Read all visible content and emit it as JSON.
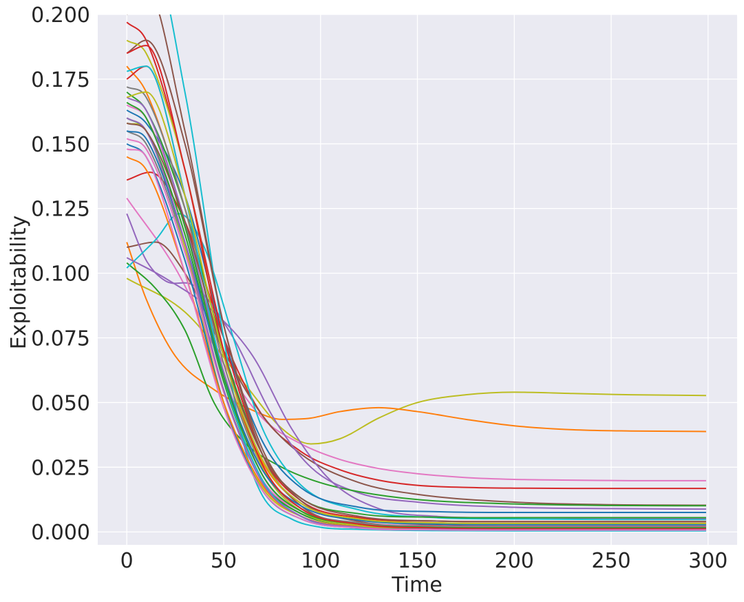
{
  "chart_data": {
    "type": "line",
    "title": "",
    "xlabel": "Time",
    "ylabel": "Exploitability",
    "xlim": [
      -15,
      315
    ],
    "ylim": [
      -0.005,
      0.2
    ],
    "xticks": [
      0,
      50,
      100,
      150,
      200,
      250,
      300
    ],
    "xtick_labels": [
      "0",
      "50",
      "100",
      "150",
      "200",
      "250",
      "300"
    ],
    "yticks": [
      0,
      0.025,
      0.05,
      0.075,
      0.1,
      0.125,
      0.15,
      0.175,
      0.2
    ],
    "ytick_labels": [
      "0.000",
      "0.025",
      "0.050",
      "0.075",
      "0.100",
      "0.125",
      "0.150",
      "0.175",
      "0.200"
    ],
    "grid": true,
    "legend": "none",
    "background": "#eaeaf2",
    "palette": [
      "#1f77b4",
      "#ff7f0e",
      "#2ca02c",
      "#d62728",
      "#9467bd",
      "#8c564b",
      "#e377c2",
      "#7f7f7f",
      "#bcbd22",
      "#17becf"
    ],
    "series": [
      {
        "color": "#bcbd22",
        "x": [
          0,
          30,
          60,
          80,
          95,
          110,
          130,
          150,
          175,
          200,
          230,
          260,
          299
        ],
        "y": [
          0.098,
          0.085,
          0.058,
          0.04,
          0.034,
          0.036,
          0.044,
          0.05,
          0.053,
          0.054,
          0.0535,
          0.053,
          0.0527
        ]
      },
      {
        "color": "#ff7f0e",
        "x": [
          0,
          10,
          25,
          45,
          65,
          80,
          95,
          110,
          130,
          150,
          175,
          200,
          230,
          260,
          299
        ],
        "y": [
          0.112,
          0.09,
          0.068,
          0.055,
          0.047,
          0.0435,
          0.044,
          0.0465,
          0.048,
          0.0465,
          0.0435,
          0.041,
          0.0395,
          0.039,
          0.0388
        ]
      },
      {
        "color": "#e377c2",
        "x": [
          0,
          25,
          50,
          70,
          90,
          110,
          130,
          150,
          175,
          200,
          230,
          260,
          299
        ],
        "y": [
          0.129,
          0.102,
          0.065,
          0.044,
          0.034,
          0.028,
          0.0245,
          0.0225,
          0.021,
          0.0203,
          0.02,
          0.0198,
          0.0198
        ]
      },
      {
        "color": "#d62728",
        "x": [
          0,
          12,
          30,
          50,
          70,
          90,
          110,
          130,
          150,
          175,
          200,
          230,
          260,
          299
        ],
        "y": [
          0.136,
          0.139,
          0.12,
          0.075,
          0.045,
          0.031,
          0.024,
          0.02,
          0.018,
          0.0172,
          0.0169,
          0.0168,
          0.0168,
          0.0168
        ]
      },
      {
        "color": "#8c564b",
        "x": [
          0,
          15,
          30,
          50,
          70,
          90,
          120,
          150,
          200,
          250,
          299
        ],
        "y": [
          0.11,
          0.112,
          0.1,
          0.07,
          0.045,
          0.03,
          0.019,
          0.0145,
          0.0115,
          0.0105,
          0.0103
        ]
      },
      {
        "color": "#9467bd",
        "x": [
          0,
          10,
          20,
          35,
          55,
          75,
          95,
          120,
          150,
          200,
          250,
          299
        ],
        "y": [
          0.123,
          0.105,
          0.097,
          0.095,
          0.075,
          0.045,
          0.025,
          0.015,
          0.0115,
          0.0095,
          0.009,
          0.0088
        ]
      },
      {
        "color": "#2ca02c",
        "x": [
          0,
          15,
          30,
          45,
          60,
          80,
          100,
          120,
          150,
          200,
          250,
          299
        ],
        "y": [
          0.104,
          0.094,
          0.078,
          0.05,
          0.035,
          0.025,
          0.019,
          0.0155,
          0.0125,
          0.0108,
          0.0102,
          0.0101
        ]
      },
      {
        "color": "#17becf",
        "x": [
          0,
          15,
          27,
          40,
          55,
          70,
          90,
          120,
          160,
          200,
          250,
          299
        ],
        "y": [
          0.102,
          0.113,
          0.123,
          0.11,
          0.075,
          0.04,
          0.018,
          0.0085,
          0.0055,
          0.005,
          0.0048,
          0.0048
        ]
      },
      {
        "color": "#9467bd",
        "x": [
          0,
          20,
          45,
          65,
          85,
          105,
          130,
          160,
          200,
          250,
          299
        ],
        "y": [
          0.106,
          0.098,
          0.085,
          0.068,
          0.04,
          0.02,
          0.009,
          0.006,
          0.0055,
          0.0053,
          0.0052
        ]
      },
      {
        "color": "#1f77b4",
        "x": [
          0,
          10,
          30,
          50,
          70,
          90,
          120,
          160,
          200,
          250,
          299
        ],
        "y": [
          0.163,
          0.158,
          0.13,
          0.075,
          0.035,
          0.017,
          0.0095,
          0.0078,
          0.0075,
          0.0075,
          0.0075
        ]
      },
      {
        "color": "#2ca02c",
        "x": [
          0,
          10,
          30,
          50,
          70,
          90,
          120,
          160,
          200,
          250,
          299
        ],
        "y": [
          0.17,
          0.163,
          0.125,
          0.07,
          0.03,
          0.013,
          0.007,
          0.0057,
          0.0055,
          0.0055,
          0.0055
        ]
      },
      {
        "color": "#d62728",
        "x": [
          0,
          10,
          30,
          50,
          70,
          90,
          120,
          160,
          200,
          250,
          299
        ],
        "y": [
          0.197,
          0.19,
          0.14,
          0.075,
          0.03,
          0.012,
          0.0055,
          0.0042,
          0.004,
          0.004,
          0.004
        ]
      },
      {
        "color": "#ff7f0e",
        "x": [
          0,
          10,
          30,
          50,
          70,
          90,
          120,
          160,
          200,
          250,
          299
        ],
        "y": [
          0.18,
          0.17,
          0.125,
          0.065,
          0.027,
          0.011,
          0.005,
          0.0035,
          0.0033,
          0.0033,
          0.0033
        ]
      },
      {
        "color": "#8c564b",
        "x": [
          0,
          10,
          30,
          50,
          70,
          90,
          120,
          160,
          200,
          250,
          299
        ],
        "y": [
          0.185,
          0.19,
          0.15,
          0.08,
          0.032,
          0.012,
          0.004,
          0.0025,
          0.0022,
          0.0022,
          0.0022
        ]
      },
      {
        "color": "#e377c2",
        "x": [
          0,
          10,
          30,
          50,
          70,
          90,
          120,
          160,
          200,
          250,
          299
        ],
        "y": [
          0.165,
          0.16,
          0.12,
          0.06,
          0.024,
          0.009,
          0.003,
          0.0018,
          0.0016,
          0.0016,
          0.0016
        ]
      },
      {
        "color": "#7f7f7f",
        "x": [
          0,
          10,
          30,
          50,
          70,
          90,
          120,
          160,
          200,
          250,
          299
        ],
        "y": [
          0.155,
          0.15,
          0.11,
          0.055,
          0.02,
          0.007,
          0.0025,
          0.0012,
          0.001,
          0.001,
          0.001
        ]
      },
      {
        "color": "#bcbd22",
        "x": [
          0,
          10,
          30,
          50,
          70,
          90,
          120,
          160,
          200,
          250,
          299
        ],
        "y": [
          0.158,
          0.155,
          0.11,
          0.05,
          0.017,
          0.006,
          0.002,
          0.0011,
          0.001,
          0.001,
          0.001
        ]
      },
      {
        "color": "#17becf",
        "x": [
          0,
          10,
          30,
          50,
          60,
          70,
          85,
          100,
          120,
          160,
          200,
          250,
          299
        ],
        "y": [
          0.2,
          0.23,
          0.17,
          0.075,
          0.035,
          0.014,
          0.005,
          0.0018,
          0.001,
          0.0005,
          0.0004,
          0.0004,
          0.0004
        ]
      },
      {
        "color": "#1f77b4",
        "x": [
          0,
          10,
          30,
          50,
          70,
          90,
          120,
          160,
          200,
          250,
          299
        ],
        "y": [
          0.15,
          0.145,
          0.105,
          0.05,
          0.016,
          0.005,
          0.0015,
          0.0008,
          0.0007,
          0.0007,
          0.0007
        ]
      },
      {
        "color": "#2ca02c",
        "x": [
          0,
          10,
          30,
          50,
          70,
          90,
          120,
          160,
          200,
          250,
          299
        ],
        "y": [
          0.16,
          0.155,
          0.115,
          0.058,
          0.02,
          0.007,
          0.0025,
          0.0015,
          0.0013,
          0.0013,
          0.0013
        ]
      },
      {
        "color": "#d62728",
        "x": [
          0,
          10,
          30,
          50,
          70,
          90,
          120,
          160,
          200,
          250,
          299
        ],
        "y": [
          0.175,
          0.18,
          0.13,
          0.06,
          0.02,
          0.006,
          0.002,
          0.0012,
          0.001,
          0.001,
          0.001
        ]
      },
      {
        "color": "#9467bd",
        "x": [
          0,
          10,
          30,
          50,
          70,
          90,
          120,
          160,
          200,
          250,
          299
        ],
        "y": [
          0.168,
          0.163,
          0.12,
          0.062,
          0.022,
          0.008,
          0.0032,
          0.002,
          0.0018,
          0.0018,
          0.0018
        ]
      },
      {
        "color": "#8c564b",
        "x": [
          0,
          10,
          30,
          50,
          70,
          90,
          120,
          160,
          200,
          250,
          299
        ],
        "y": [
          0.2,
          0.21,
          0.155,
          0.08,
          0.03,
          0.01,
          0.003,
          0.0015,
          0.0012,
          0.0012,
          0.0012
        ]
      },
      {
        "color": "#ff7f0e",
        "x": [
          0,
          10,
          30,
          50,
          70,
          90,
          120,
          160,
          200,
          250,
          299
        ],
        "y": [
          0.145,
          0.14,
          0.1,
          0.05,
          0.018,
          0.006,
          0.002,
          0.0012,
          0.001,
          0.001,
          0.001
        ]
      },
      {
        "color": "#e377c2",
        "x": [
          0,
          10,
          30,
          50,
          70,
          90,
          120,
          160,
          200,
          250,
          299
        ],
        "y": [
          0.152,
          0.148,
          0.108,
          0.054,
          0.02,
          0.008,
          0.0035,
          0.0022,
          0.002,
          0.002,
          0.002
        ]
      },
      {
        "color": "#7f7f7f",
        "x": [
          0,
          10,
          30,
          50,
          70,
          90,
          120,
          160,
          200,
          250,
          299
        ],
        "y": [
          0.172,
          0.168,
          0.125,
          0.065,
          0.025,
          0.009,
          0.0035,
          0.002,
          0.0018,
          0.0018,
          0.0018
        ]
      },
      {
        "color": "#bcbd22",
        "x": [
          0,
          10,
          30,
          50,
          70,
          90,
          120,
          160,
          200,
          250,
          299
        ],
        "y": [
          0.19,
          0.185,
          0.14,
          0.07,
          0.025,
          0.008,
          0.0025,
          0.0012,
          0.001,
          0.001,
          0.001
        ]
      },
      {
        "color": "#17becf",
        "x": [
          0,
          10,
          30,
          50,
          70,
          90,
          120,
          160,
          200,
          250,
          299
        ],
        "y": [
          0.178,
          0.18,
          0.13,
          0.06,
          0.02,
          0.006,
          0.0015,
          0.0006,
          0.0005,
          0.0005,
          0.0005
        ]
      },
      {
        "color": "#1f77b4",
        "x": [
          0,
          10,
          30,
          50,
          70,
          90,
          120,
          160,
          200,
          250,
          299
        ],
        "y": [
          0.155,
          0.152,
          0.112,
          0.06,
          0.024,
          0.01,
          0.0045,
          0.003,
          0.0028,
          0.0028,
          0.0028
        ]
      },
      {
        "color": "#2ca02c",
        "x": [
          0,
          10,
          30,
          50,
          70,
          90,
          120,
          160,
          200,
          250,
          299
        ],
        "y": [
          0.166,
          0.16,
          0.118,
          0.06,
          0.022,
          0.008,
          0.003,
          0.0018,
          0.0016,
          0.0016,
          0.0016
        ]
      },
      {
        "color": "#d62728",
        "x": [
          0,
          10,
          30,
          50,
          70,
          90,
          120,
          160,
          200,
          250,
          299
        ],
        "y": [
          0.185,
          0.188,
          0.14,
          0.07,
          0.026,
          0.009,
          0.003,
          0.0015,
          0.0012,
          0.0012,
          0.0012
        ]
      },
      {
        "color": "#9467bd",
        "x": [
          0,
          10,
          30,
          50,
          70,
          90,
          120,
          160,
          200,
          250,
          299
        ],
        "y": [
          0.16,
          0.155,
          0.112,
          0.055,
          0.019,
          0.006,
          0.0018,
          0.001,
          0.0008,
          0.0008,
          0.0008
        ]
      },
      {
        "color": "#e377c2",
        "x": [
          0,
          10,
          30,
          50,
          70,
          90,
          120,
          160,
          200,
          250,
          299
        ],
        "y": [
          0.148,
          0.145,
          0.1,
          0.048,
          0.016,
          0.005,
          0.0015,
          0.0008,
          0.0007,
          0.0007,
          0.0007
        ]
      },
      {
        "color": "#8c564b",
        "x": [
          0,
          10,
          30,
          50,
          70,
          90,
          120,
          160,
          200,
          250,
          299
        ],
        "y": [
          0.158,
          0.155,
          0.12,
          0.068,
          0.03,
          0.013,
          0.006,
          0.0042,
          0.004,
          0.004,
          0.004
        ]
      },
      {
        "color": "#bcbd22",
        "x": [
          0,
          10,
          30,
          50,
          70,
          90,
          120,
          160,
          200,
          250,
          299
        ],
        "y": [
          0.168,
          0.17,
          0.13,
          0.068,
          0.028,
          0.011,
          0.005,
          0.0035,
          0.0033,
          0.0033,
          0.0033
        ]
      }
    ]
  }
}
